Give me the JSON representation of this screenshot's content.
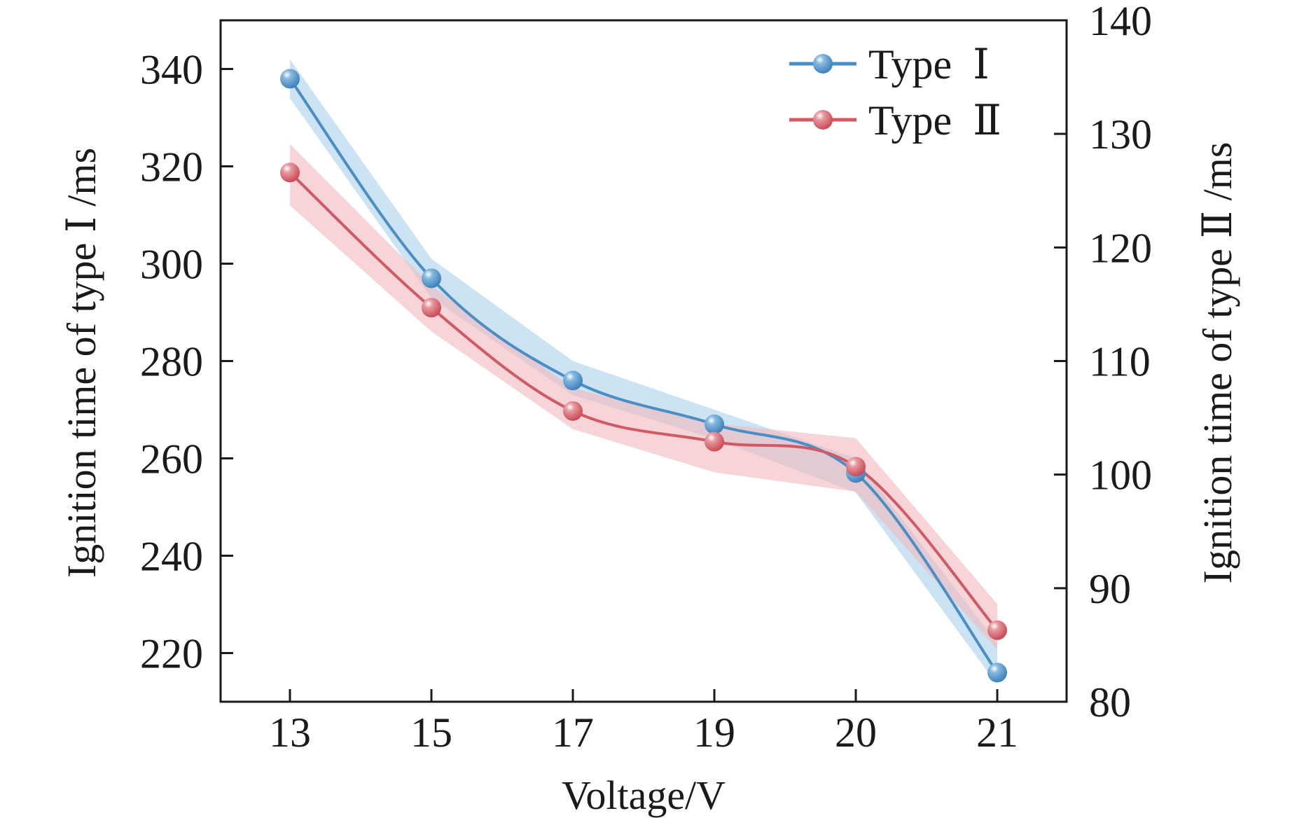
{
  "chart_data": {
    "type": "line",
    "title": "",
    "xlabel": "Voltage/V",
    "ylabel_left": "Ignition time of type Ⅰ /ms",
    "ylabel_right": "Ignition time of type Ⅱ /ms",
    "categories": [
      "13",
      "15",
      "17",
      "19",
      "20",
      "21"
    ],
    "x_axis_type": "categorical",
    "ylim_left": [
      210,
      350
    ],
    "yticks_left": [
      220,
      240,
      260,
      280,
      300,
      320,
      340
    ],
    "ylim_right": [
      80,
      140
    ],
    "yticks_right": [
      80,
      90,
      100,
      110,
      120,
      130,
      140
    ],
    "grid": false,
    "legend_position": "top-right",
    "series": [
      {
        "name": "Type Ⅰ",
        "legend_label": "Type  Ⅰ",
        "axis": "left",
        "color": "#4a8ec4",
        "band_color": "#a9d0ea",
        "values": [
          338,
          297,
          276,
          267,
          257,
          216
        ],
        "band_lower": [
          334,
          293,
          273,
          264,
          253,
          213.5
        ],
        "band_upper": [
          342,
          301,
          280,
          270,
          260,
          222
        ],
        "smooth": true
      },
      {
        "name": "Type Ⅱ",
        "legend_label": "Type  Ⅱ",
        "axis": "right",
        "color": "#cf5a64",
        "band_color": "#f2b8bc",
        "values": [
          126.6,
          114.7,
          105.6,
          102.9,
          100.7,
          86.3
        ],
        "band_lower": [
          123.7,
          112.6,
          104.0,
          100.2,
          98.5,
          84.6
        ],
        "band_upper": [
          129.1,
          116.6,
          107.6,
          104.5,
          103.2,
          88.6
        ],
        "smooth": true
      }
    ]
  }
}
